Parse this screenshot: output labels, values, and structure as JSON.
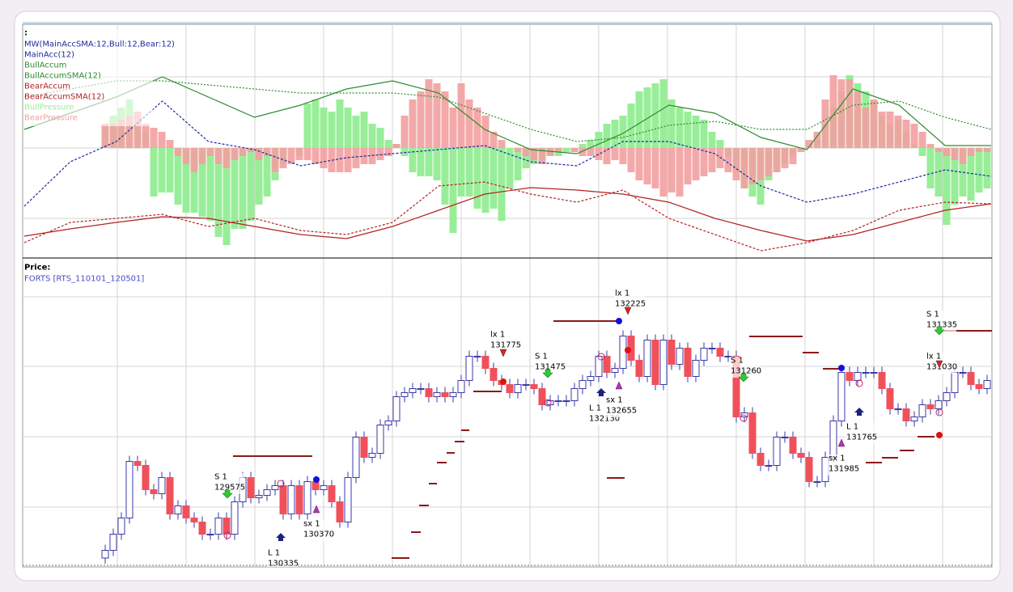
{
  "chart_data": [
    {
      "type": "bar",
      "title": ":",
      "subtitle": "MW(MainAccSMA:12,Bull:12,Bear:12)",
      "ylim": [
        -135,
        153
      ],
      "series": [
        {
          "name": "BullPressure",
          "color": "#98ee98",
          "values": [
            30,
            40,
            50,
            60,
            30,
            20,
            -60,
            -55,
            -55,
            -70,
            -80,
            -80,
            -85,
            -90,
            -110,
            -120,
            -100,
            -100,
            -90,
            -70,
            -60,
            -40,
            -20,
            0,
            -10,
            55,
            60,
            50,
            45,
            60,
            50,
            40,
            45,
            30,
            25,
            10,
            5,
            -10,
            -30,
            -35,
            -35,
            -40,
            -70,
            -105,
            -60,
            -60,
            -75,
            -80,
            -75,
            -90,
            -50,
            -40,
            -25,
            -20,
            -15,
            -10,
            -10,
            -5,
            -5,
            5,
            10,
            20,
            30,
            35,
            40,
            55,
            70,
            75,
            80,
            85,
            60,
            50,
            45,
            40,
            35,
            20,
            10,
            -10,
            -30,
            -50,
            -60,
            -70,
            -40,
            -30,
            -20,
            -10,
            0,
            0,
            10,
            30,
            50,
            70,
            90,
            80,
            70,
            60,
            40,
            30,
            35,
            20,
            5,
            -10,
            -50,
            -60,
            -95,
            -70,
            -60,
            -65,
            -55,
            -50
          ]
        },
        {
          "name": "BearPressure",
          "color": "#f2a0a0",
          "values": [
            30,
            30,
            35,
            40,
            45,
            30,
            25,
            20,
            10,
            -10,
            -20,
            -30,
            -20,
            -10,
            -20,
            -25,
            -15,
            -10,
            -5,
            -15,
            -10,
            -30,
            -25,
            -20,
            -15,
            -15,
            -20,
            -25,
            -30,
            -30,
            -30,
            -25,
            -20,
            -20,
            -15,
            -10,
            5,
            40,
            60,
            70,
            85,
            80,
            70,
            50,
            80,
            60,
            50,
            40,
            20,
            10,
            0,
            -5,
            -10,
            -15,
            -20,
            -10,
            -5,
            0,
            -5,
            -10,
            -10,
            -15,
            -20,
            -15,
            -20,
            -30,
            -40,
            -45,
            -50,
            -60,
            -55,
            -60,
            -45,
            -40,
            -35,
            -30,
            -25,
            -30,
            -40,
            -50,
            -45,
            -40,
            -35,
            -30,
            -25,
            -20,
            -5,
            10,
            20,
            60,
            90,
            85,
            85,
            70,
            50,
            60,
            45,
            45,
            40,
            35,
            30,
            20,
            5,
            -5,
            -10,
            -15,
            -20,
            -10,
            -5,
            -5
          ]
        }
      ],
      "lines": [
        {
          "name": "MainAcc(12)",
          "color": "#1c2a9c",
          "values": [
            -72,
            -17,
            8,
            58,
            8,
            -2,
            -22,
            -12,
            -7,
            -2,
            3,
            -17,
            -22,
            8,
            8,
            -7,
            -47,
            -67,
            -57,
            -42,
            -27,
            -35
          ]
        },
        {
          "name": "BullAccum",
          "color": "#2e8b2e",
          "values": [
            23,
            43,
            63,
            88,
            63,
            38,
            53,
            73,
            83,
            68,
            23,
            -2,
            -7,
            18,
            53,
            43,
            13,
            -2,
            73,
            53,
            3,
            3
          ]
        },
        {
          "name": "BullAccumSMA(12)",
          "color": "#2e8b2e",
          "values": [
            63,
            73,
            83,
            83,
            78,
            73,
            68,
            68,
            68,
            63,
            43,
            23,
            8,
            13,
            28,
            33,
            23,
            23,
            53,
            58,
            38,
            23
          ]
        },
        {
          "name": "BearAccum",
          "color": "#b22222",
          "values": [
            -117,
            -92,
            -87,
            -82,
            -97,
            -87,
            -102,
            -107,
            -92,
            -47,
            -42,
            -57,
            -67,
            -52,
            -87,
            -107,
            -127,
            -117,
            -102,
            -77,
            -67,
            -69
          ]
        },
        {
          "name": "BearAccumSMA(12)",
          "color": "#b22222",
          "values": [
            -109,
            -100,
            -92,
            -85,
            -87,
            -97,
            -107,
            -112,
            -97,
            -77,
            -57,
            -49,
            -52,
            -57,
            -67,
            -87,
            -102,
            -115,
            -107,
            -92,
            -77,
            -69
          ]
        }
      ]
    },
    {
      "type": "candlestick",
      "title": "Price:",
      "subtitle": "FORTS [RTS_110101_120501]",
      "ylim": [
        129200,
        132950
      ],
      "up_color": "#ffffff",
      "down_color": "#f0505a",
      "candles": [
        [
          129300,
          129465,
          129230,
          129395
        ],
        [
          129395,
          129665,
          129325,
          129595
        ],
        [
          129595,
          129865,
          129525,
          129795
        ],
        [
          129795,
          130565,
          129725,
          130495
        ],
        [
          130495,
          130565,
          130375,
          130445
        ],
        [
          130445,
          130515,
          130075,
          130145
        ],
        [
          130145,
          130215,
          130025,
          130095
        ],
        [
          130095,
          130365,
          130025,
          130295
        ],
        [
          130295,
          130365,
          129775,
          129845
        ],
        [
          129845,
          130015,
          129775,
          129945
        ],
        [
          129945,
          130015,
          129725,
          129795
        ],
        [
          129795,
          129865,
          129675,
          129745
        ],
        [
          129745,
          129815,
          129525,
          129595
        ],
        [
          129595,
          129665,
          129525,
          129595
        ],
        [
          129595,
          129865,
          129525,
          129795
        ],
        [
          129795,
          129865,
          129525,
          129595
        ],
        [
          129595,
          130065,
          129525,
          129995
        ],
        [
          129995,
          130365,
          129925,
          130295
        ],
        [
          130295,
          130365,
          129975,
          130045
        ],
        [
          130045,
          130145,
          129975,
          130075
        ],
        [
          130075,
          130215,
          130005,
          130145
        ],
        [
          130145,
          130265,
          130075,
          130195
        ],
        [
          130195,
          130265,
          129775,
          129845
        ],
        [
          129845,
          130265,
          129775,
          130195
        ],
        [
          130195,
          130265,
          129775,
          129845
        ],
        [
          129845,
          130315,
          129775,
          130245
        ],
        [
          130245,
          130315,
          130075,
          130145
        ],
        [
          130145,
          130265,
          130075,
          130195
        ],
        [
          130195,
          130265,
          129925,
          129995
        ],
        [
          129995,
          130065,
          129675,
          129745
        ],
        [
          129745,
          130365,
          129675,
          130295
        ],
        [
          130295,
          130865,
          130225,
          130795
        ],
        [
          130795,
          130865,
          130475,
          130545
        ],
        [
          130545,
          130665,
          130475,
          130595
        ],
        [
          130595,
          131015,
          130525,
          130945
        ],
        [
          130945,
          131065,
          130875,
          130995
        ],
        [
          130995,
          131365,
          130925,
          131295
        ],
        [
          131295,
          131415,
          131225,
          131345
        ],
        [
          131345,
          131465,
          131275,
          131395
        ],
        [
          131395,
          131465,
          131325,
          131395
        ],
        [
          131395,
          131465,
          131225,
          131295
        ],
        [
          131295,
          131415,
          131225,
          131345
        ],
        [
          131345,
          131415,
          131225,
          131295
        ],
        [
          131295,
          131415,
          131225,
          131345
        ],
        [
          131345,
          131565,
          131275,
          131495
        ],
        [
          131495,
          131865,
          131425,
          131795
        ],
        [
          131795,
          131865,
          131725,
          131795
        ],
        [
          131795,
          131865,
          131575,
          131645
        ],
        [
          131645,
          131715,
          131425,
          131495
        ],
        [
          131495,
          131565,
          131375,
          131445
        ],
        [
          131445,
          131515,
          131275,
          131345
        ],
        [
          131345,
          131515,
          131275,
          131445
        ],
        [
          131445,
          131515,
          131375,
          131445
        ],
        [
          131445,
          131515,
          131325,
          131395
        ],
        [
          131395,
          131465,
          131125,
          131195
        ],
        [
          131195,
          131315,
          131125,
          131245
        ],
        [
          131245,
          131315,
          131175,
          131245
        ],
        [
          131245,
          131315,
          131175,
          131245
        ],
        [
          131245,
          131465,
          131175,
          131395
        ],
        [
          131395,
          131565,
          131325,
          131495
        ],
        [
          131495,
          131615,
          131425,
          131545
        ],
        [
          131545,
          131865,
          131475,
          131795
        ],
        [
          131795,
          131865,
          131525,
          131595
        ],
        [
          131595,
          131715,
          131525,
          131645
        ],
        [
          131645,
          132115,
          131575,
          132045
        ],
        [
          132045,
          132115,
          131675,
          131745
        ],
        [
          131745,
          131815,
          131475,
          131545
        ],
        [
          131545,
          132065,
          131475,
          131995
        ],
        [
          131995,
          132065,
          131375,
          131445
        ],
        [
          131445,
          132065,
          131375,
          131995
        ],
        [
          131995,
          132065,
          131625,
          131695
        ],
        [
          131695,
          131965,
          131625,
          131895
        ],
        [
          131895,
          131965,
          131475,
          131545
        ],
        [
          131545,
          131815,
          131475,
          131745
        ],
        [
          131745,
          131965,
          131675,
          131895
        ],
        [
          131895,
          131965,
          131825,
          131895
        ],
        [
          131895,
          131965,
          131725,
          131795
        ],
        [
          131795,
          131865,
          131725,
          131795
        ],
        [
          131795,
          131865,
          130975,
          131045
        ],
        [
          131045,
          131165,
          130975,
          131095
        ],
        [
          131095,
          131165,
          130525,
          130595
        ],
        [
          130595,
          130665,
          130375,
          130445
        ],
        [
          130445,
          130515,
          130375,
          130445
        ],
        [
          130445,
          130865,
          130375,
          130795
        ],
        [
          130795,
          130865,
          130725,
          130795
        ],
        [
          130795,
          130865,
          130525,
          130595
        ],
        [
          130595,
          130665,
          130475,
          130545
        ],
        [
          130545,
          130615,
          130175,
          130245
        ],
        [
          130245,
          130315,
          130175,
          130245
        ],
        [
          130245,
          130615,
          130175,
          130545
        ],
        [
          130545,
          131065,
          130475,
          130995
        ],
        [
          130995,
          131665,
          130925,
          131595
        ],
        [
          131595,
          131665,
          131425,
          131495
        ],
        [
          131495,
          131665,
          131425,
          131595
        ],
        [
          131595,
          131665,
          131525,
          131595
        ],
        [
          131595,
          131665,
          131525,
          131595
        ],
        [
          131595,
          131665,
          131325,
          131395
        ],
        [
          131395,
          131465,
          131075,
          131145
        ],
        [
          131145,
          131215,
          131075,
          131145
        ],
        [
          131145,
          131215,
          130925,
          130995
        ],
        [
          130995,
          131115,
          130925,
          131045
        ],
        [
          131045,
          131265,
          130975,
          131195
        ],
        [
          131195,
          131265,
          131075,
          131145
        ],
        [
          131145,
          131315,
          131075,
          131245
        ],
        [
          131245,
          131415,
          131175,
          131345
        ],
        [
          131345,
          131665,
          131275,
          131595
        ],
        [
          131595,
          131665,
          131525,
          131595
        ],
        [
          131595,
          131665,
          131375,
          131445
        ],
        [
          131445,
          131515,
          131325,
          131395
        ],
        [
          131395,
          131565,
          131325,
          131495
        ]
      ],
      "trades": [
        {
          "label": "S 1",
          "price": 129575
        },
        {
          "label": "L 1",
          "price": 130335
        },
        {
          "label": "sx 1",
          "price": 130370
        },
        {
          "label": "lx 1",
          "price": 131775
        },
        {
          "label": "S 1",
          "price": 131475
        },
        {
          "label": "L 1",
          "price": 132130
        },
        {
          "label": "sx 1",
          "price": 132655
        },
        {
          "label": "lx 1",
          "price": 132225
        },
        {
          "label": "S 1",
          "price": 131260
        },
        {
          "label": "sx 1",
          "price": 131985
        },
        {
          "label": "L 1",
          "price": 131765
        },
        {
          "label": "S 1",
          "price": 131335
        },
        {
          "label": "lx 1",
          "price": 131030
        }
      ]
    }
  ]
}
